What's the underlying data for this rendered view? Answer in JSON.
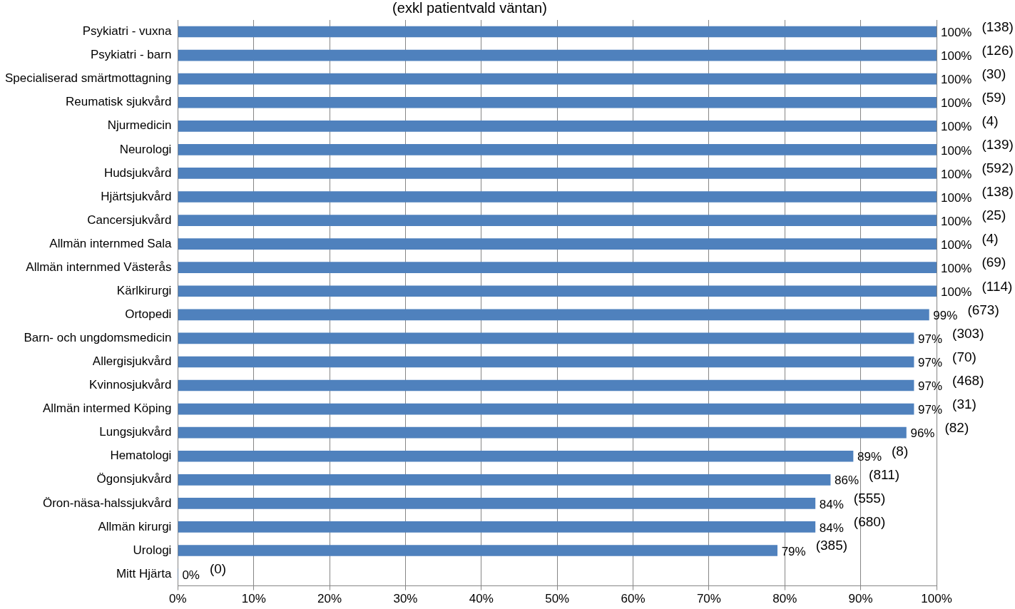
{
  "chart_data": {
    "type": "bar",
    "orientation": "horizontal",
    "title": "(exkl patientvald väntan)",
    "categories": [
      "Psykiatri - vuxna",
      "Psykiatri - barn",
      "Specialiserad smärtmottagning",
      "Reumatisk sjukvård",
      "Njurmedicin",
      "Neurologi",
      "Hudsjukvård",
      "Hjärtsjukvård",
      "Cancersjukvård",
      "Allmän internmed Sala",
      "Allmän internmed Västerås",
      "Kärlkirurgi",
      "Ortopedi",
      "Barn- och ungdomsmedicin",
      "Allergisjukvård",
      "Kvinnosjukvård",
      "Allmän intermed Köping",
      "Lungsjukvård",
      "Hematologi",
      "Ögonsjukvård",
      "Öron-näsa-halssjukvård",
      "Allmän kirurgi",
      "Urologi",
      "Mitt Hjärta"
    ],
    "values": [
      100,
      100,
      100,
      100,
      100,
      100,
      100,
      100,
      100,
      100,
      100,
      100,
      99,
      97,
      97,
      97,
      97,
      96,
      89,
      86,
      84,
      84,
      79,
      0
    ],
    "value_labels": [
      "100%",
      "100%",
      "100%",
      "100%",
      "100%",
      "100%",
      "100%",
      "100%",
      "100%",
      "100%",
      "100%",
      "100%",
      "99%",
      "97%",
      "97%",
      "97%",
      "97%",
      "96%",
      "89%",
      "86%",
      "84%",
      "84%",
      "79%",
      "0%"
    ],
    "color": "#4f81bd",
    "xlim": [
      0,
      100
    ],
    "xticks": [
      {
        "value": 0,
        "label": "0%"
      },
      {
        "value": 10,
        "label": "10%"
      },
      {
        "value": 20,
        "label": "20%"
      },
      {
        "value": 30,
        "label": "30%"
      },
      {
        "value": 40,
        "label": "40%"
      },
      {
        "value": 50,
        "label": "50%"
      },
      {
        "value": 60,
        "label": "60%"
      },
      {
        "value": 70,
        "label": "70%"
      },
      {
        "value": 80,
        "label": "80%"
      },
      {
        "value": 90,
        "label": "90%"
      },
      {
        "value": 100,
        "label": "100%"
      }
    ],
    "grid": "x",
    "legend": false,
    "annotations": [
      "(138)",
      "(126)",
      "(30)",
      "(59)",
      "(4)",
      "(139)",
      "(592)",
      "(138)",
      "(25)",
      "(4)",
      "(69)",
      "(114)",
      "(673)",
      "(303)",
      "(70)",
      "(468)",
      "(31)",
      "(82)",
      "(8)",
      "(811)",
      "(555)",
      "(680)",
      "(385)",
      "(0)"
    ]
  }
}
